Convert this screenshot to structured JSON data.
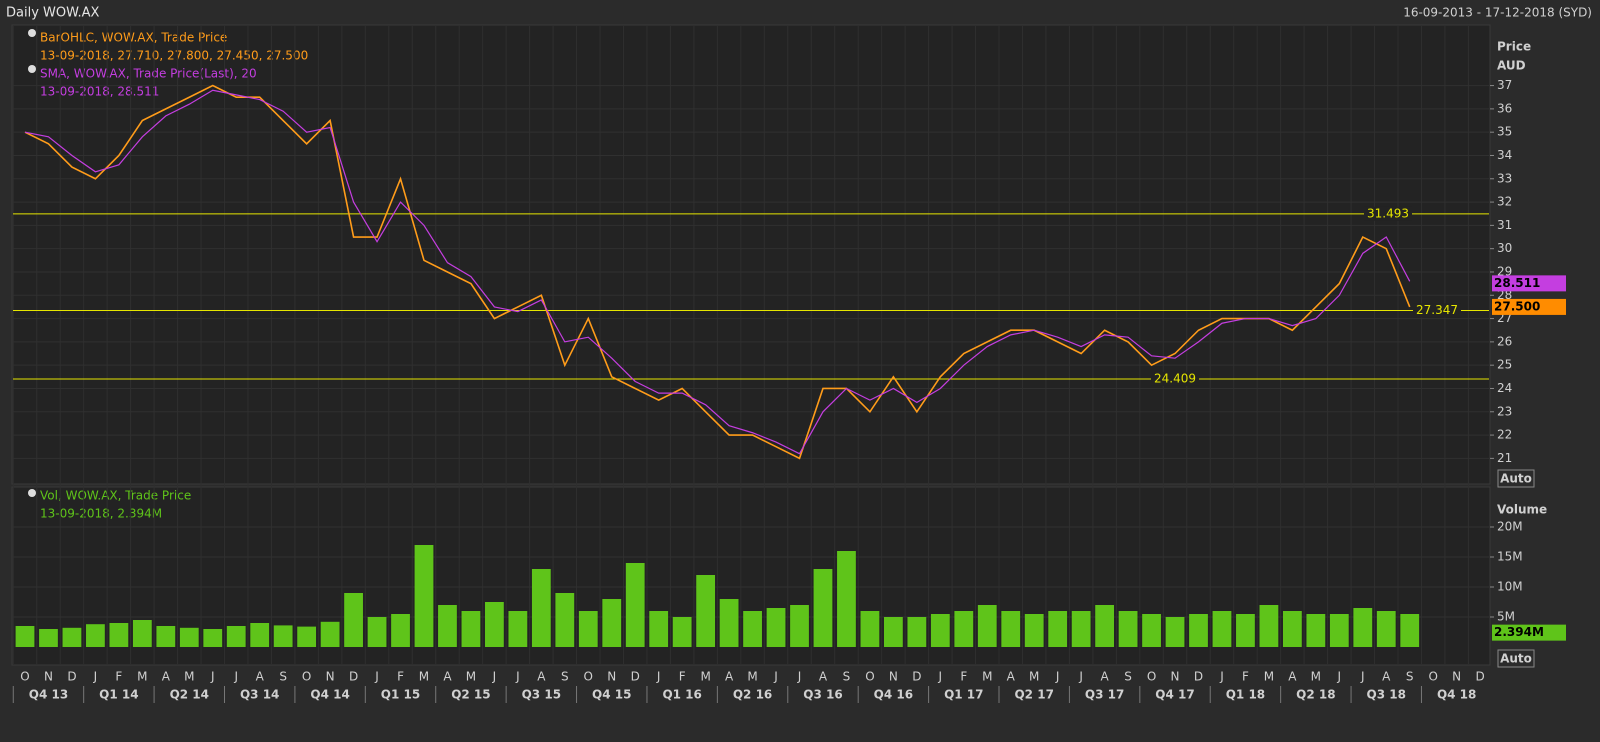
{
  "header": {
    "title": "Daily WOW.AX",
    "range": "16-09-2013 - 17-12-2018 (SYD)"
  },
  "chart_data": [
    {
      "type": "line",
      "legend": [
        {
          "name": "BarOHLC, WOW.AX, Trade Price",
          "detail": "13-09-2018, 27.710, 27.800, 27.450, 27.500"
        },
        {
          "name": "SMA, WOW.AX, Trade Price(Last),  20",
          "detail": "13-09-2018, 28.511"
        }
      ],
      "y_axis_title": "Price",
      "y_axis_unit": "AUD",
      "auto_button": "Auto",
      "categories": [
        "O",
        "N",
        "D",
        "J",
        "F",
        "M",
        "A",
        "M",
        "J",
        "J",
        "A",
        "S",
        "O",
        "N",
        "D",
        "J",
        "F",
        "M",
        "A",
        "M",
        "J",
        "J",
        "A",
        "S",
        "O",
        "N",
        "D",
        "J",
        "F",
        "M",
        "A",
        "M",
        "J",
        "J",
        "A",
        "S",
        "O",
        "N",
        "D",
        "J",
        "F",
        "M",
        "A",
        "M",
        "J",
        "J",
        "A",
        "S",
        "O",
        "N",
        "D",
        "J",
        "F",
        "M",
        "A",
        "M",
        "J",
        "J",
        "A",
        "S",
        "O",
        "N",
        "D"
      ],
      "quarters": [
        "Q4 13",
        "Q1 14",
        "Q2 14",
        "Q3 14",
        "Q4 14",
        "Q1 15",
        "Q2 15",
        "Q3 15",
        "Q4 15",
        "Q1 16",
        "Q2 16",
        "Q3 16",
        "Q4 16",
        "Q1 17",
        "Q2 17",
        "Q3 17",
        "Q4 17",
        "Q1 18",
        "Q2 18",
        "Q3 18",
        "Q4 18"
      ],
      "series": [
        {
          "name": "BarOHLC",
          "color": "#ff9c1a",
          "values": [
            35,
            34.5,
            33.5,
            33,
            34,
            35.5,
            36,
            36.5,
            37,
            36.5,
            36.5,
            35.5,
            34.5,
            35.5,
            30.5,
            30.5,
            33,
            29.5,
            29,
            28.5,
            27,
            27.5,
            28,
            25,
            27,
            24.5,
            24,
            23.5,
            24,
            23,
            22,
            22,
            21.5,
            21,
            24,
            24,
            23,
            24.5,
            23,
            24.5,
            25.5,
            26,
            26.5,
            26.5,
            26,
            25.5,
            26.5,
            26,
            25,
            25.5,
            26.5,
            27,
            27,
            27,
            26.5,
            27.5,
            28.5,
            30.5,
            30,
            27.5,
            null,
            null,
            null
          ]
        },
        {
          "name": "SMA",
          "color": "#c43ee0",
          "values": [
            35,
            34.8,
            34,
            33.3,
            33.6,
            34.8,
            35.7,
            36.2,
            36.8,
            36.6,
            36.4,
            35.9,
            35,
            35.2,
            32,
            30.3,
            32,
            31,
            29.4,
            28.8,
            27.5,
            27.3,
            27.8,
            26,
            26.2,
            25.3,
            24.3,
            23.8,
            23.8,
            23.3,
            22.4,
            22.1,
            21.7,
            21.2,
            23,
            24,
            23.5,
            24,
            23.4,
            24,
            25,
            25.8,
            26.3,
            26.5,
            26.2,
            25.8,
            26.3,
            26.2,
            25.4,
            25.3,
            26,
            26.8,
            27,
            27,
            26.7,
            27,
            28,
            29.8,
            30.5,
            28.6,
            null,
            null,
            null
          ]
        }
      ],
      "levels": [
        31.493,
        27.347,
        24.409
      ],
      "last_tags": [
        {
          "value": 28.511,
          "color": "#c43ee0"
        },
        {
          "value": 27.5,
          "label": "27.500",
          "color": "#ff8c00"
        }
      ],
      "ylim": [
        19.9,
        39.6
      ],
      "yticks": [
        21,
        22,
        23,
        24,
        25,
        26,
        27,
        28,
        29,
        30,
        31,
        32,
        33,
        34,
        35,
        36,
        37
      ]
    },
    {
      "type": "bar",
      "legend": [
        {
          "name": "Vol, WOW.AX, Trade Price",
          "detail": "13-09-2018, 2.394M"
        }
      ],
      "y_axis_title": "Volume",
      "auto_button": "Auto",
      "color": "#5fc41a",
      "values": [
        3.5,
        3,
        3.2,
        3.8,
        4,
        4.5,
        3.5,
        3.2,
        3,
        3.5,
        4,
        3.6,
        3.4,
        4.2,
        9,
        5,
        5.5,
        17,
        7,
        6,
        7.5,
        6,
        13,
        9,
        6,
        8,
        14,
        6,
        5,
        12,
        8,
        6,
        6.5,
        7,
        13,
        16,
        6,
        5,
        5,
        5.5,
        6,
        7,
        6,
        5.5,
        6,
        6,
        7,
        6,
        5.5,
        5,
        5.5,
        6,
        5.5,
        7,
        6,
        5.5,
        5.5,
        6.5,
        6,
        5.5,
        null,
        null,
        null
      ],
      "last_tag": {
        "value": 2.394,
        "label": "2.394M",
        "color": "#5fc41a"
      },
      "ylim": [
        0,
        25
      ],
      "yticks": [
        {
          "value": 5,
          "label": "5M"
        },
        {
          "value": 10,
          "label": "10M"
        },
        {
          "value": 15,
          "label": "15M"
        },
        {
          "value": 20,
          "label": "20M"
        }
      ]
    }
  ]
}
